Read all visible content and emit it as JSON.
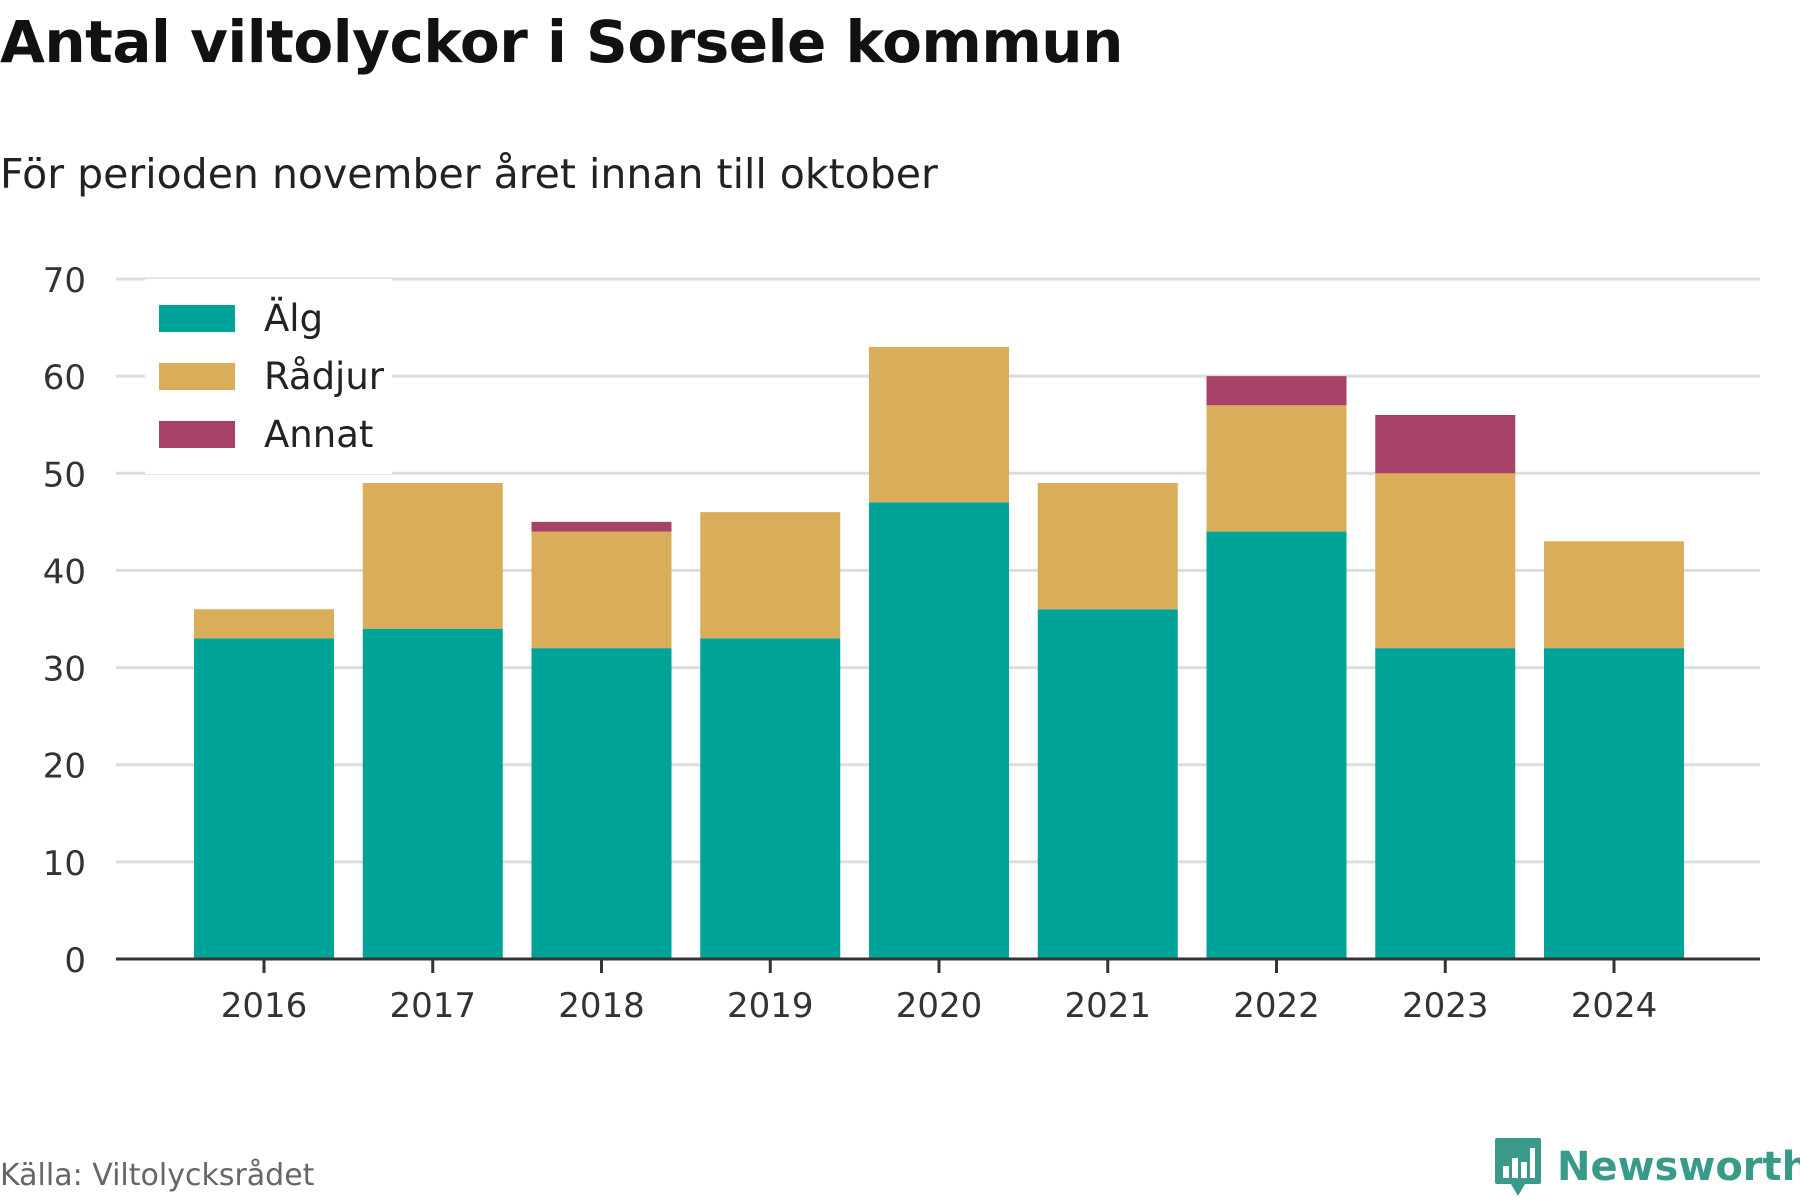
{
  "header": {
    "title": "Antal viltolyckor i Sorsele kommun",
    "subtitle": "För perioden november året innan till oktober"
  },
  "footer": {
    "source": "Källa: Viltolycksrådet",
    "brand": "Newsworthy",
    "brand_icon": "bar-chart-speech-bubble-icon",
    "brand_color": "#3a9a8a"
  },
  "chart_data": {
    "type": "bar",
    "stacked": true,
    "title": "Antal viltolyckor i Sorsele kommun",
    "subtitle": "För perioden november året innan till oktober",
    "xlabel": "",
    "ylabel": "",
    "categories": [
      "2016",
      "2017",
      "2018",
      "2019",
      "2020",
      "2021",
      "2022",
      "2023",
      "2024"
    ],
    "series": [
      {
        "name": "Älg",
        "color": "#00a398",
        "values": [
          33,
          34,
          32,
          33,
          47,
          36,
          44,
          32,
          32
        ]
      },
      {
        "name": "Rådjur",
        "color": "#d9ad5a",
        "values": [
          3,
          15,
          12,
          13,
          16,
          13,
          13,
          18,
          11
        ]
      },
      {
        "name": "Annat",
        "color": "#a64268",
        "values": [
          0,
          0,
          1,
          0,
          0,
          0,
          3,
          6,
          0
        ]
      }
    ],
    "ylim": [
      0,
      70
    ],
    "yticks": [
      0,
      10,
      20,
      30,
      40,
      50,
      60,
      70
    ],
    "grid": true,
    "legend": "top-left"
  }
}
